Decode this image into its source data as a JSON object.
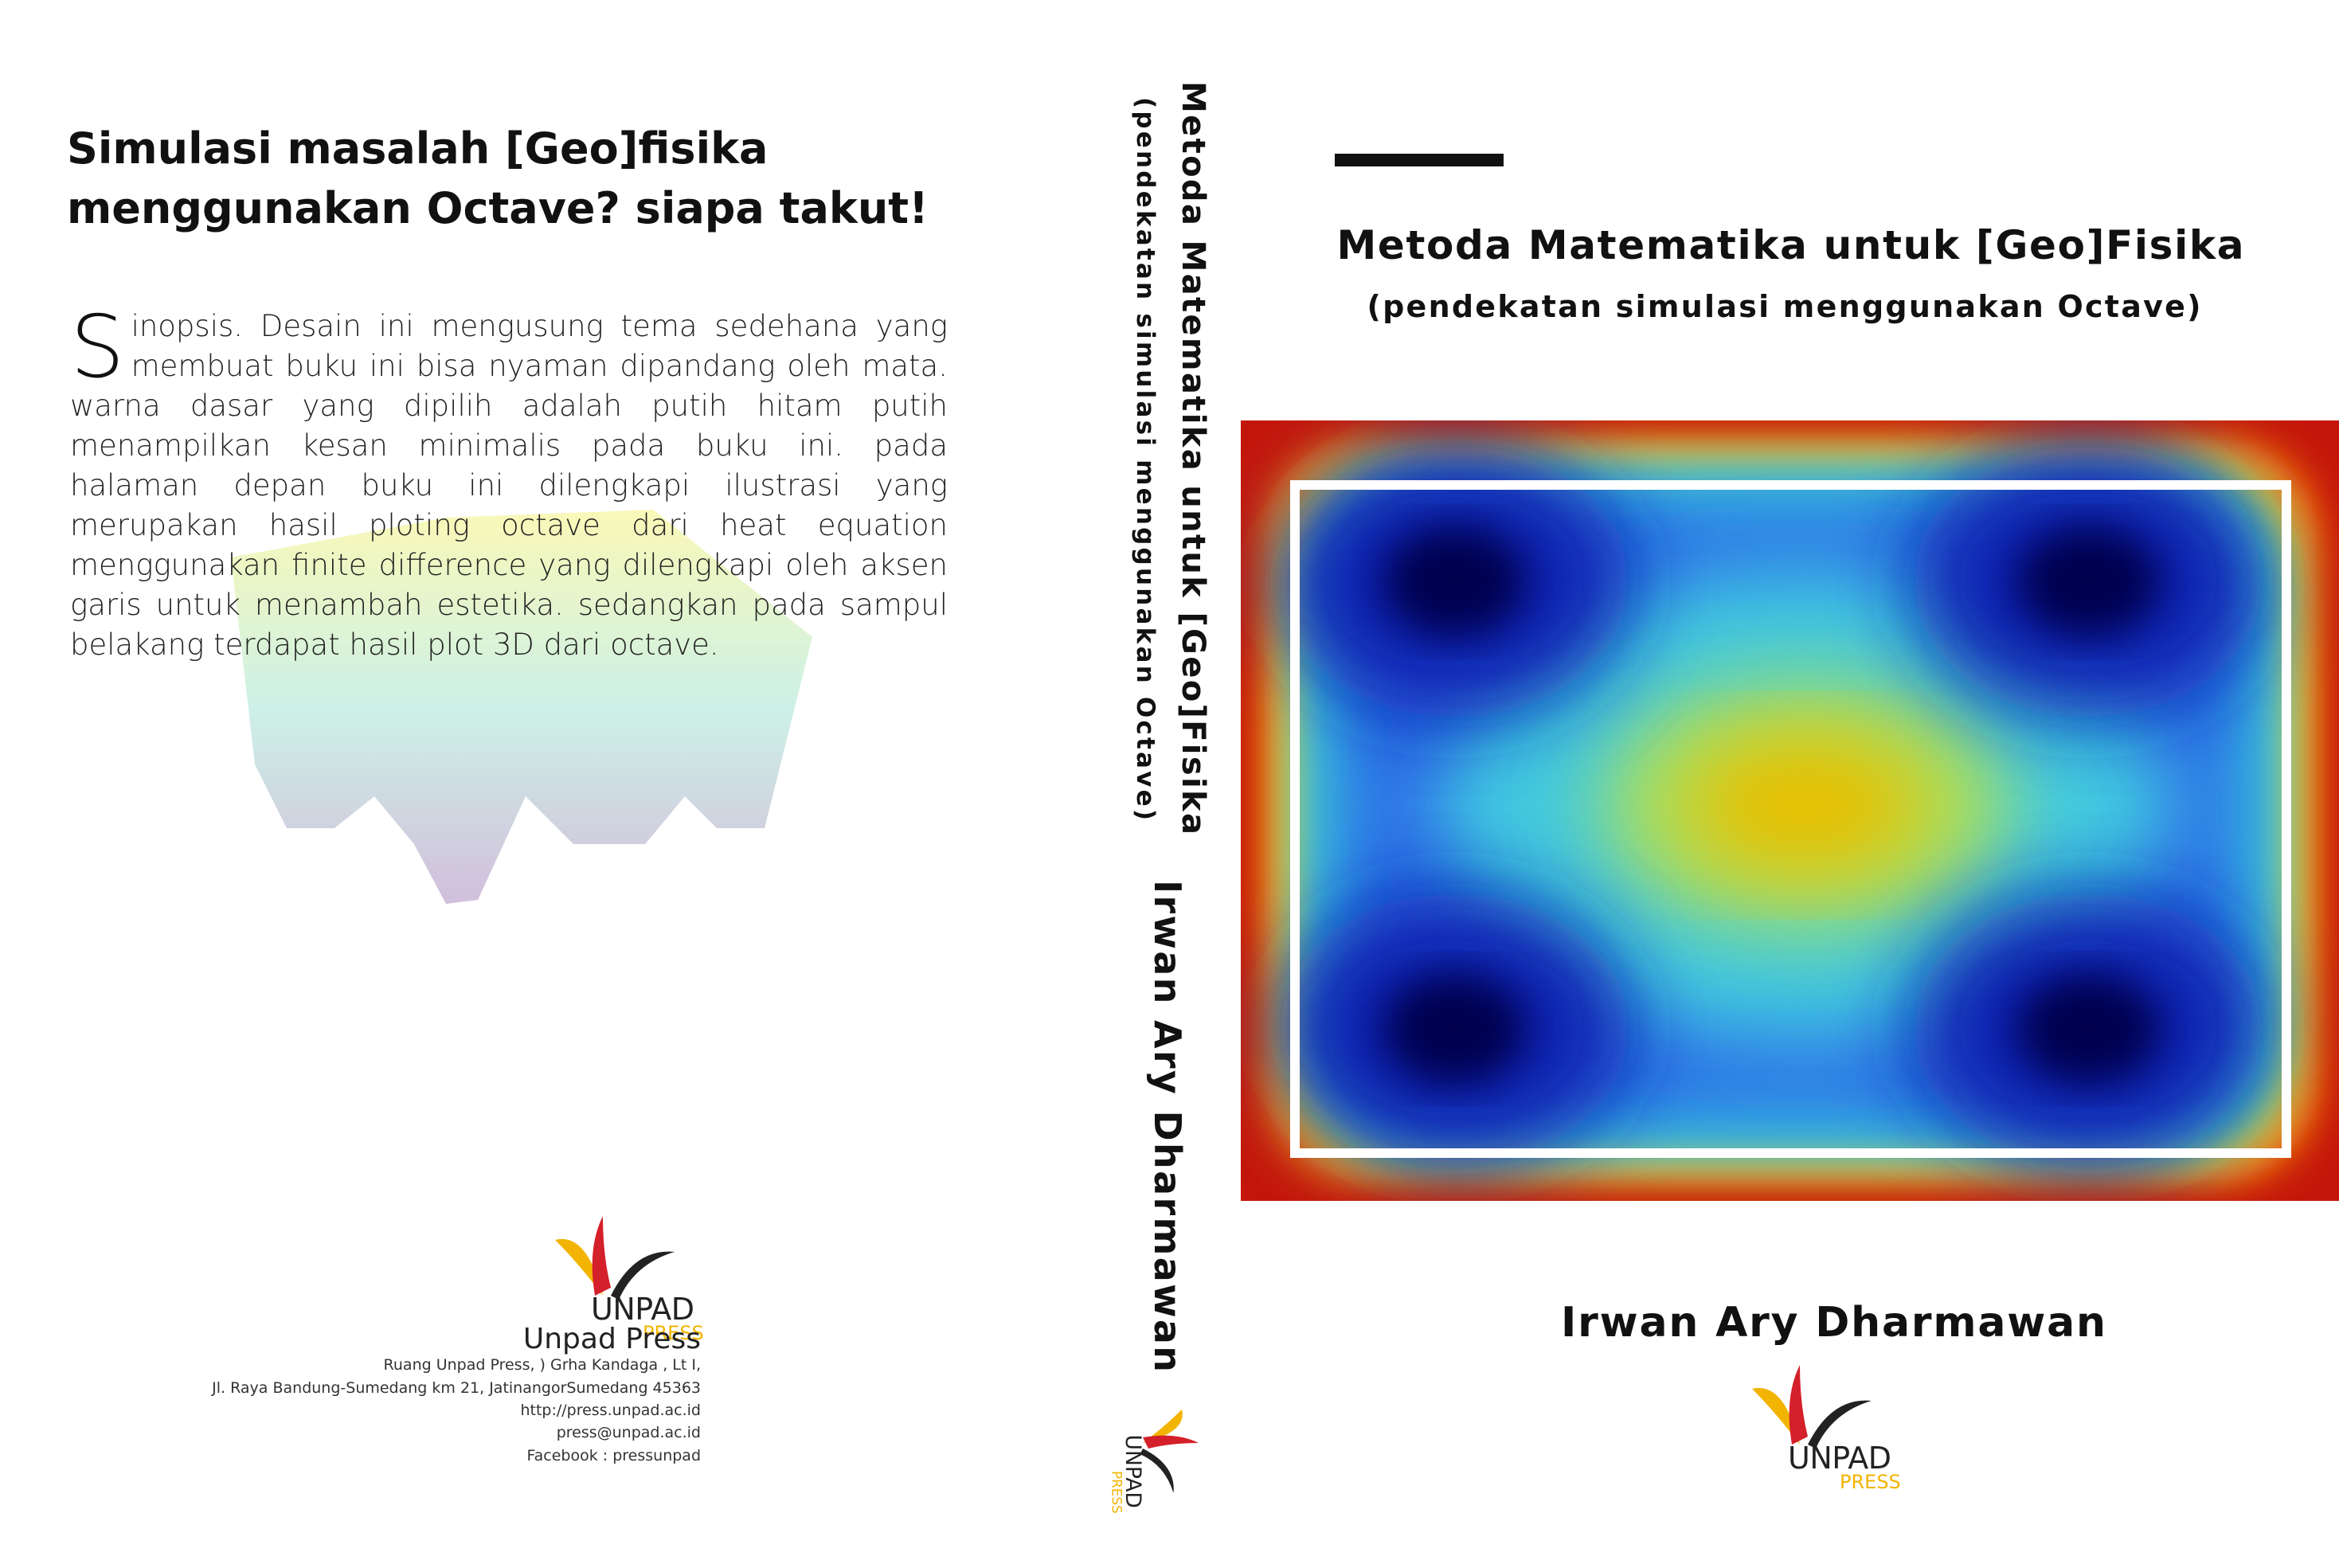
{
  "back": {
    "title_lines": [
      "Simulasi masalah [Geo]fisika",
      "menggunakan Octave? siapa takut!"
    ],
    "synopsis_initial": "S",
    "synopsis": "inopsis. Desain ini mengusung tema sedehana yang membuat buku ini bisa nyaman dipandang oleh mata. warna dasar yang dipilih adalah putih hitam putih menampilkan kesan minimalis  pada buku ini. pada halaman depan buku ini dilengkapi ilustrasi yang merupakan hasil ploting octave dari heat equation menggunakan finite difference yang  dilengkapi oleh aksen garis untuk menambah estetika. sedangkan pada sampul belakang terdapat hasil plot 3D dari octave.",
    "publisher": "Unpad Press",
    "address_lines": [
      "Ruang Unpad Press, ) Grha Kandaga , Lt I,",
      "Jl. Raya Bandung-Sumedang km 21, JatinangorSumedang 45363",
      "http://press.unpad.ac.id",
      "press@unpad.ac.id",
      "Facebook : pressunpad"
    ]
  },
  "spine": {
    "title": "Metoda Matematika untuk [Geo]Fisika",
    "subtitle": "(pendekatan simulasi menggunakan Octave)",
    "author": "Irwan Ary Dharmawan"
  },
  "front": {
    "title": "Metoda Matematika untuk [Geo]Fisika",
    "subtitle": "(pendekatan simulasi menggunakan Octave)",
    "author": "Irwan Ary Dharmawan"
  },
  "logo": {
    "name": "UNPAD",
    "sub": "PRESS"
  }
}
